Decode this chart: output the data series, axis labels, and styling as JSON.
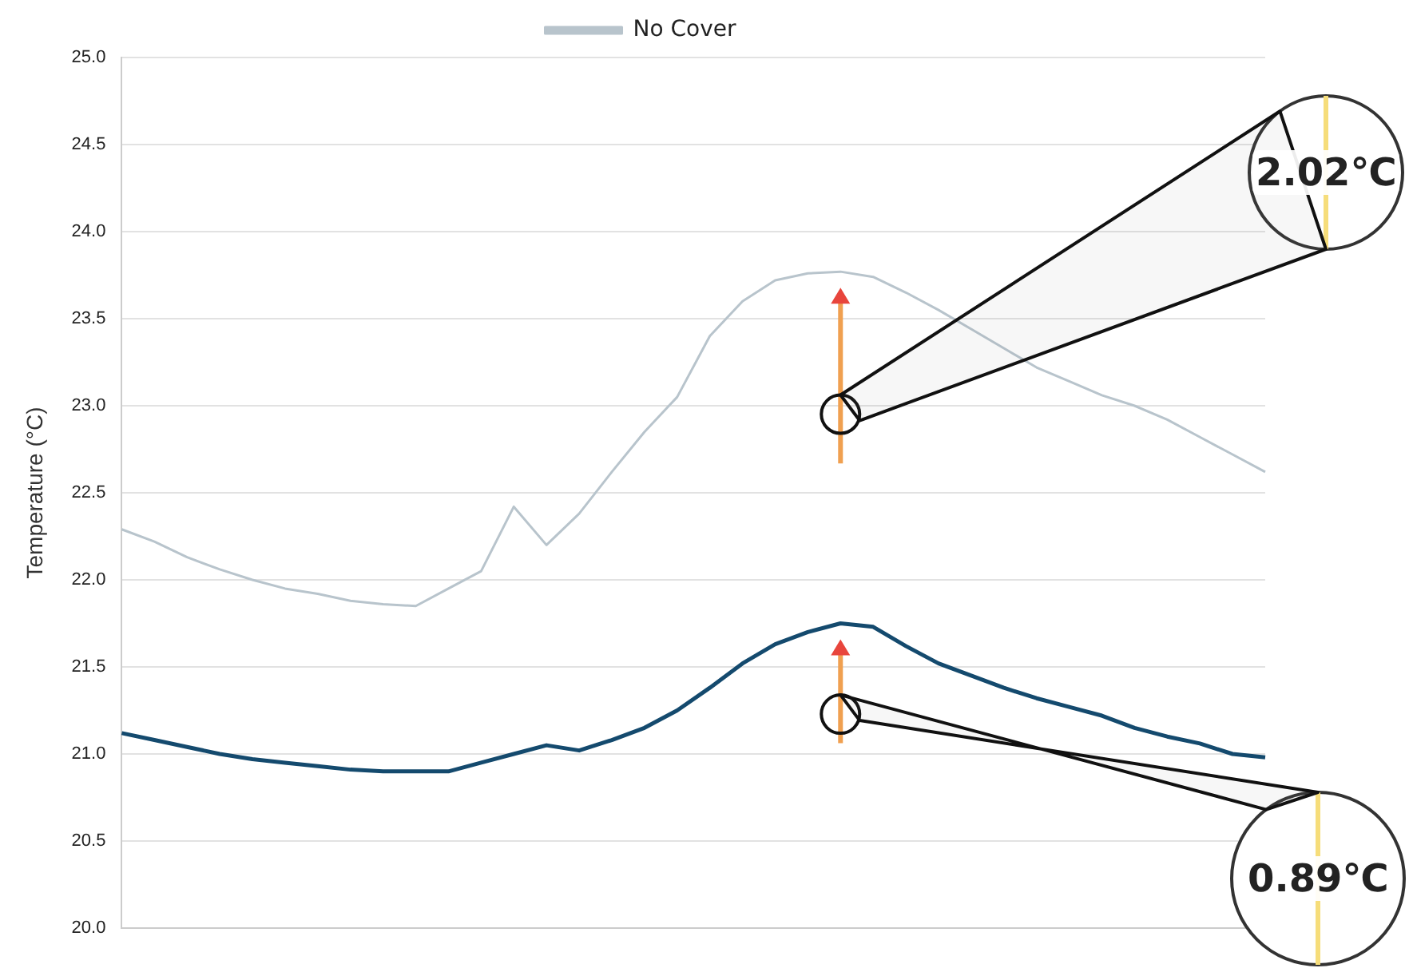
{
  "chart_data": {
    "type": "line",
    "ylabel": "Temperature (°C)",
    "categories": [
      null,
      null,
      null,
      null,
      null,
      null,
      null,
      null,
      null,
      null,
      null,
      null,
      null,
      null,
      null,
      null,
      null,
      null,
      null,
      null,
      null,
      null,
      null,
      null,
      null,
      null,
      null,
      null,
      null,
      null,
      null,
      null,
      null,
      null,
      null,
      null
    ],
    "series": [
      {
        "name": "No Cover",
        "color": "#b8c4cc",
        "values": [
          22.29,
          22.22,
          22.13,
          22.06,
          22.0,
          21.95,
          21.92,
          21.88,
          21.86,
          21.85,
          21.95,
          22.05,
          22.42,
          22.2,
          22.38,
          22.62,
          22.85,
          23.05,
          23.4,
          23.6,
          23.72,
          23.76,
          23.77,
          23.74,
          23.65,
          23.55,
          23.44,
          23.33,
          23.22,
          23.14,
          23.06,
          23.0,
          22.92,
          22.82,
          22.72,
          22.62
        ]
      },
      {
        "color": "#144a6e",
        "values": [
          21.12,
          21.08,
          21.04,
          21.0,
          20.97,
          20.95,
          20.93,
          20.91,
          20.9,
          20.9,
          20.9,
          20.95,
          21.0,
          21.05,
          21.02,
          21.08,
          21.15,
          21.25,
          21.38,
          21.52,
          21.63,
          21.7,
          21.75,
          21.73,
          21.62,
          21.52,
          21.45,
          21.38,
          21.32,
          21.27,
          21.22,
          21.15,
          21.1,
          21.06,
          21.0,
          20.98
        ]
      }
    ],
    "ylim": [
      20,
      25
    ],
    "yticks": [
      {
        "value": 20,
        "label": "20.0"
      },
      {
        "value": 20.5,
        "label": "20.5"
      },
      {
        "value": 21,
        "label": "21.0"
      },
      {
        "value": 21.5,
        "label": "21.5"
      },
      {
        "value": 22,
        "label": "22.0"
      },
      {
        "value": 22.5,
        "label": "22.5"
      },
      {
        "value": 23,
        "label": "23.0"
      },
      {
        "value": 23.5,
        "label": "23.5"
      },
      {
        "value": 24,
        "label": "24.0"
      },
      {
        "value": 24.5,
        "label": "24.5"
      },
      {
        "value": 25,
        "label": "25.0"
      }
    ],
    "tick_labels": "y",
    "grid": "y",
    "legend": "top",
    "marker": "none",
    "line_style": "solid",
    "annotations": [
      "2.02℃",
      "0.89℃"
    ]
  }
}
